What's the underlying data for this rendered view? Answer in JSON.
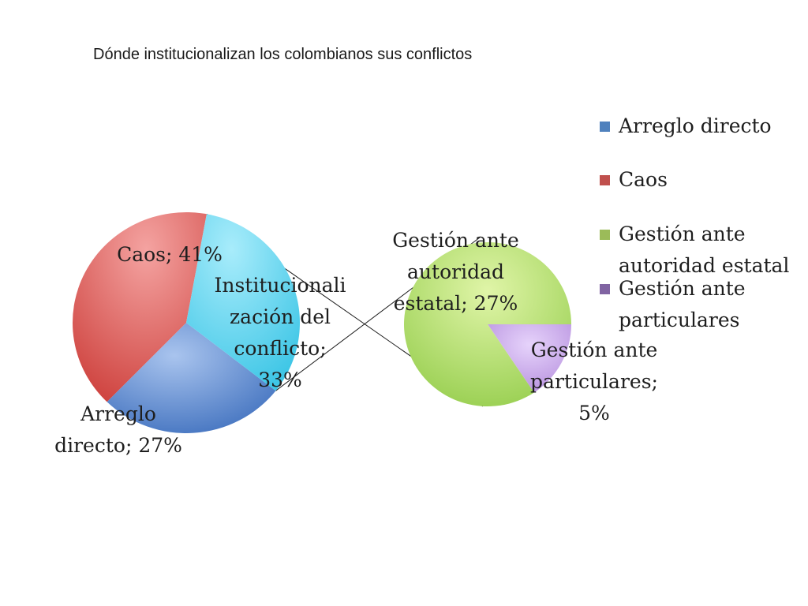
{
  "chart_data": {
    "type": "pie",
    "title": "Dónde institucionalizan los colombianos sus conflictos",
    "main_pie": {
      "slices": [
        {
          "name": "Arreglo directo",
          "value": 27,
          "label_lines": [
            "Arreglo",
            "directo; 27%"
          ],
          "color": "#4f81bd"
        },
        {
          "name": "Caos",
          "value": 41,
          "label_lines": [
            "Caos; 41%"
          ],
          "color": "#c0504d"
        },
        {
          "name": "Institucionalización del conflicto",
          "value": 33,
          "label_lines": [
            "Institucionali",
            "zación del",
            "conflicto;",
            "33%"
          ],
          "color": "#4bc0e0"
        }
      ]
    },
    "secondary_pie": {
      "slices": [
        {
          "name": "Gestión ante autoridad estatal",
          "value": 27,
          "label_lines": [
            "Gestión ante",
            "autoridad",
            "estatal; 27%"
          ],
          "color": "#9bbb59"
        },
        {
          "name": "Gestión ante particulares",
          "value": 5,
          "label_lines": [
            "Gestión ante",
            "particulares;",
            "5%"
          ],
          "color": "#8064a2"
        }
      ]
    },
    "legend": {
      "placement": "right",
      "entries": [
        {
          "lines": [
            "Arreglo directo"
          ],
          "color": "#4f81bd"
        },
        {
          "lines": [
            "Caos"
          ],
          "color": "#c0504d"
        },
        {
          "lines": [
            "Gestión ante",
            "autoridad estatal"
          ],
          "color": "#9bbb59"
        },
        {
          "lines": [
            "Gestión ante",
            "particulares"
          ],
          "color": "#8064a2"
        }
      ]
    }
  }
}
